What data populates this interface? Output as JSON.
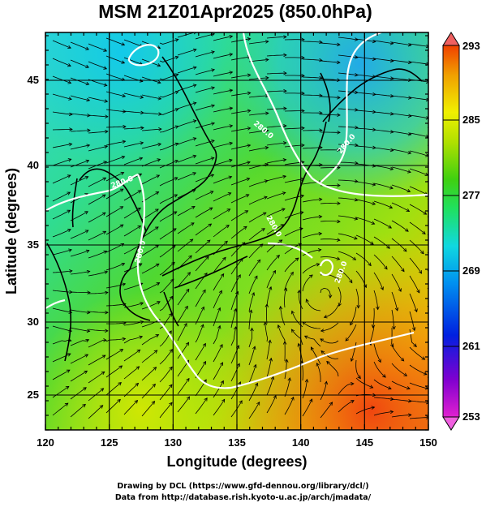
{
  "title": "MSM 21Z01Apr2025 (850.0hPa)",
  "x_axis": {
    "label": "Longitude (degrees)",
    "ticks": [
      "120",
      "125",
      "130",
      "135",
      "140",
      "145",
      "150"
    ]
  },
  "y_axis": {
    "label": "Latitude  (degrees)",
    "ticks": [
      "25",
      "30",
      "35",
      "40",
      "45"
    ]
  },
  "colorbar": {
    "ticks": [
      "293",
      "285",
      "277",
      "269",
      "261",
      "253"
    ],
    "range": [
      253,
      293
    ],
    "colors": [
      "#e020d0",
      "#8000d0",
      "#0020e0",
      "#0090f0",
      "#10d8e0",
      "#20e060",
      "#40d010",
      "#b0e000",
      "#f0f000",
      "#f0a000",
      "#f04000"
    ]
  },
  "contour_labels": [
    "280.0",
    "280.0",
    "280.0",
    "280.0",
    "280.0",
    "280.0"
  ],
  "credits": {
    "line1": "Drawing by DCL (https://www.gfd-dennou.org/library/dcl/)",
    "line2": "Data from http://database.rish.kyoto-u.ac.jp/arch/jmadata/"
  }
}
